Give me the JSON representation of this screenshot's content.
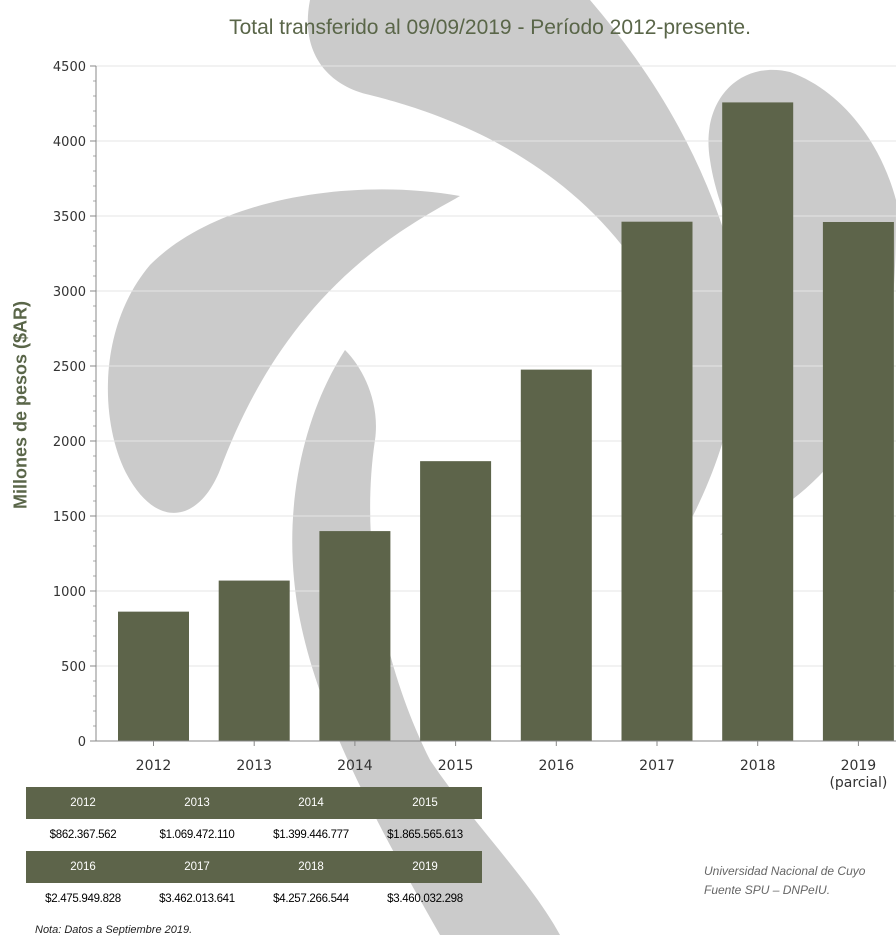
{
  "chart_data": {
    "type": "bar",
    "title": "Total transferido al 09/09/2019 - Período 2012-presente.",
    "ylabel": "Millones de pesos ($AR)",
    "xlabel": "",
    "ylim": [
      0,
      4500
    ],
    "yticks": [
      "0",
      "500",
      "1000",
      "1500",
      "2000",
      "2500",
      "3000",
      "3500",
      "4000",
      "4500"
    ],
    "categories": [
      [
        "2012"
      ],
      [
        "2013"
      ],
      [
        "2014"
      ],
      [
        "2015"
      ],
      [
        "2016"
      ],
      [
        "2017"
      ],
      [
        "2018"
      ],
      [
        "2019",
        "(parcial)"
      ]
    ],
    "values": [
      862.4,
      1069.5,
      1399.4,
      1865.6,
      2475.9,
      3462.0,
      4257.3,
      3460.0
    ],
    "grid": true,
    "bar_color": "#5d644a",
    "background_watermark": "gray-swirl-logo"
  },
  "table": {
    "row1_years": [
      "2012",
      "2013",
      "2014",
      "2015"
    ],
    "row1_values": [
      "$862.367.562",
      "$1.069.472.110",
      "$1.399.446.777",
      "$1.865.565.613"
    ],
    "row2_years": [
      "2016",
      "2017",
      "2018",
      "2019"
    ],
    "row2_values": [
      "$2.475.949.828",
      "$3.462.013.641",
      "$4.257.266.544",
      "$3.460.032.298"
    ]
  },
  "note": "Nota: Datos a Septiembre 2019.",
  "source": {
    "line1": "Universidad Nacional de Cuyo",
    "line2": "Fuente SPU – DNPeIU."
  },
  "colors": {
    "bar": "#5d644a",
    "title": "#5a6649",
    "watermark": "#cbcbcb",
    "grid": "#e4e4e4"
  }
}
